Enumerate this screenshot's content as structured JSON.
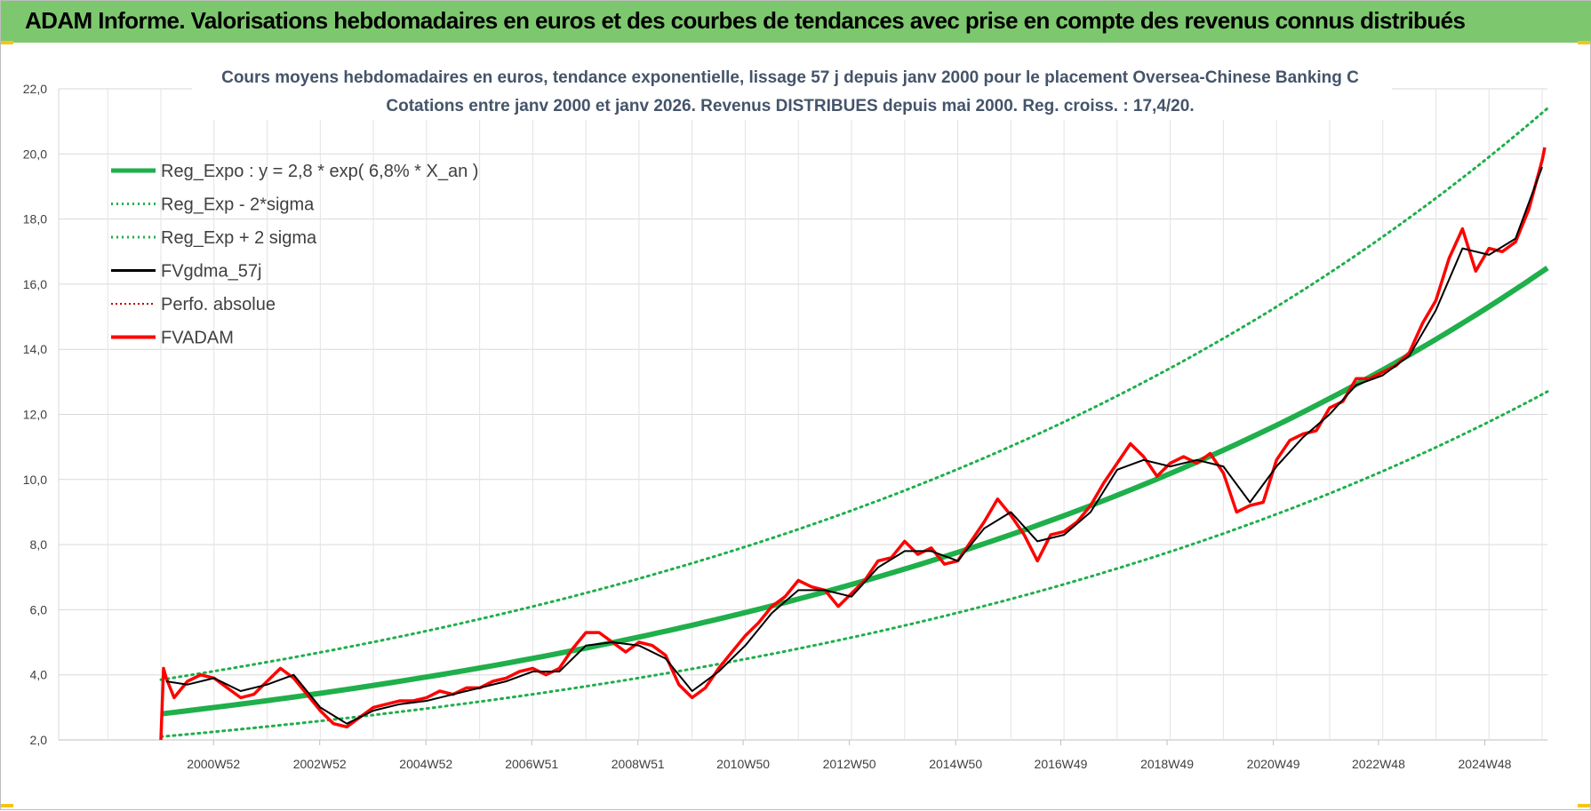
{
  "banner": {
    "title": "ADAM Informe. Valorisations hebdomadaires en euros et des courbes de tendances avec prise en compte des revenus connus distribués"
  },
  "chart_data": {
    "type": "line",
    "title": "Cours moyens hebdomadaires en euros, tendance exponentielle, lissage 57 j depuis janv 2000 pour le placement Oversea-Chinese Banking C",
    "subtitle": "Cotations entre janv 2000 et janv 2026. Revenus DISTRIBUES depuis mai 2000. Reg. croiss. : 17,4/20.",
    "xlabel": "",
    "ylabel": "",
    "ylim": [
      2,
      22
    ],
    "y_ticks": [
      "2,0",
      "4,0",
      "6,0",
      "8,0",
      "10,0",
      "12,0",
      "14,0",
      "16,0",
      "18,0",
      "20,0",
      "22,0"
    ],
    "x_tick_labels": [
      "2000W52",
      "2002W52",
      "2004W52",
      "2006W51",
      "2008W51",
      "2010W50",
      "2012W50",
      "2014W50",
      "2016W49",
      "2018W49",
      "2020W49",
      "2022W48",
      "2024W48"
    ],
    "x_tick_years": [
      2000.99,
      2002.99,
      2004.99,
      2006.98,
      2008.98,
      2010.96,
      2012.96,
      2014.96,
      2016.94,
      2018.94,
      2020.94,
      2022.92,
      2024.92
    ],
    "xlim": [
      2000.0,
      2026.1
    ],
    "grid": true,
    "legend_position": "top-left",
    "legend": [
      "Reg_Expo : y = 2,8 * exp( 6,8% *  X_an )",
      "Reg_Exp - 2*sigma",
      "Reg_Exp + 2 sigma",
      "FVgdma_57j",
      "Perfo. absolue",
      "FVADAM"
    ],
    "colors": {
      "reg": "#1faf4b",
      "fv": "#000000",
      "adam": "#ff0000",
      "perf": "#c00000"
    },
    "regression": {
      "a": 2.8,
      "rate": 0.068,
      "start_year": 2000.0,
      "end_year": 2026.1,
      "end_value": 16.5
    },
    "band_upper": {
      "start_value": 3.85,
      "end_value": 21.4
    },
    "band_lower": {
      "start_value": 2.1,
      "end_value": 12.7
    },
    "fvadam": {
      "x": [
        2000.0,
        2000.05,
        2000.1,
        2000.25,
        2000.5,
        2000.75,
        2001.0,
        2001.25,
        2001.5,
        2001.75,
        2002.0,
        2002.25,
        2002.5,
        2002.75,
        2003.0,
        2003.25,
        2003.5,
        2003.75,
        2004.0,
        2004.25,
        2004.5,
        2004.75,
        2005.0,
        2005.25,
        2005.5,
        2005.75,
        2006.0,
        2006.25,
        2006.5,
        2006.75,
        2007.0,
        2007.25,
        2007.5,
        2007.75,
        2008.0,
        2008.25,
        2008.5,
        2008.75,
        2009.0,
        2009.25,
        2009.5,
        2009.75,
        2010.0,
        2010.25,
        2010.5,
        2010.75,
        2011.0,
        2011.25,
        2011.5,
        2011.75,
        2012.0,
        2012.25,
        2012.5,
        2012.75,
        2013.0,
        2013.25,
        2013.5,
        2013.75,
        2014.0,
        2014.25,
        2014.5,
        2014.75,
        2015.0,
        2015.25,
        2015.5,
        2015.75,
        2016.0,
        2016.25,
        2016.5,
        2016.75,
        2017.0,
        2017.25,
        2017.5,
        2017.75,
        2018.0,
        2018.25,
        2018.5,
        2018.75,
        2019.0,
        2019.25,
        2019.5,
        2019.75,
        2020.0,
        2020.25,
        2020.5,
        2020.75,
        2021.0,
        2021.25,
        2021.5,
        2021.75,
        2022.0,
        2022.25,
        2022.5,
        2022.75,
        2023.0,
        2023.25,
        2023.5,
        2023.75,
        2024.0,
        2024.25,
        2024.5,
        2024.75,
        2025.0,
        2025.25,
        2025.5,
        2025.75,
        2026.0,
        2026.05
      ],
      "y": [
        2.0,
        4.2,
        3.9,
        3.3,
        3.8,
        4.0,
        3.9,
        3.6,
        3.3,
        3.4,
        3.8,
        4.2,
        3.9,
        3.4,
        2.9,
        2.5,
        2.4,
        2.7,
        3.0,
        3.1,
        3.2,
        3.2,
        3.3,
        3.5,
        3.4,
        3.6,
        3.6,
        3.8,
        3.9,
        4.1,
        4.2,
        4.0,
        4.2,
        4.8,
        5.3,
        5.3,
        5.0,
        4.7,
        5.0,
        4.9,
        4.6,
        3.7,
        3.3,
        3.6,
        4.2,
        4.7,
        5.2,
        5.6,
        6.1,
        6.4,
        6.9,
        6.7,
        6.6,
        6.1,
        6.5,
        6.9,
        7.5,
        7.6,
        8.1,
        7.7,
        7.9,
        7.4,
        7.5,
        8.1,
        8.7,
        9.4,
        8.9,
        8.3,
        7.5,
        8.3,
        8.4,
        8.7,
        9.2,
        9.9,
        10.5,
        11.1,
        10.7,
        10.1,
        10.5,
        10.7,
        10.5,
        10.8,
        10.2,
        9.0,
        9.2,
        9.3,
        10.6,
        11.2,
        11.4,
        11.5,
        12.2,
        12.4,
        13.1,
        13.1,
        13.3,
        13.5,
        13.9,
        14.8,
        15.5,
        16.8,
        17.7,
        16.4,
        17.1,
        17.0,
        17.3,
        18.3,
        19.8,
        20.2
      ]
    },
    "fvgdma": {
      "x": [
        2000.1,
        2000.5,
        2001.0,
        2001.5,
        2002.0,
        2002.5,
        2003.0,
        2003.5,
        2004.0,
        2004.5,
        2005.0,
        2005.5,
        2006.0,
        2006.5,
        2007.0,
        2007.5,
        2008.0,
        2008.5,
        2009.0,
        2009.5,
        2010.0,
        2010.5,
        2011.0,
        2011.5,
        2012.0,
        2012.5,
        2013.0,
        2013.5,
        2014.0,
        2014.5,
        2015.0,
        2015.5,
        2016.0,
        2016.5,
        2017.0,
        2017.5,
        2018.0,
        2018.5,
        2019.0,
        2019.5,
        2020.0,
        2020.5,
        2021.0,
        2021.5,
        2022.0,
        2022.5,
        2023.0,
        2023.5,
        2024.0,
        2024.5,
        2025.0,
        2025.5,
        2026.0
      ],
      "y": [
        3.8,
        3.7,
        3.9,
        3.5,
        3.7,
        4.0,
        3.0,
        2.5,
        2.9,
        3.1,
        3.2,
        3.4,
        3.6,
        3.8,
        4.1,
        4.1,
        4.9,
        5.0,
        4.9,
        4.5,
        3.5,
        4.1,
        4.9,
        5.9,
        6.6,
        6.6,
        6.4,
        7.3,
        7.8,
        7.8,
        7.5,
        8.5,
        9.0,
        8.1,
        8.3,
        9.0,
        10.3,
        10.6,
        10.4,
        10.6,
        10.4,
        9.3,
        10.4,
        11.3,
        12.0,
        12.9,
        13.2,
        13.8,
        15.2,
        17.1,
        16.9,
        17.4,
        19.6
      ]
    }
  }
}
